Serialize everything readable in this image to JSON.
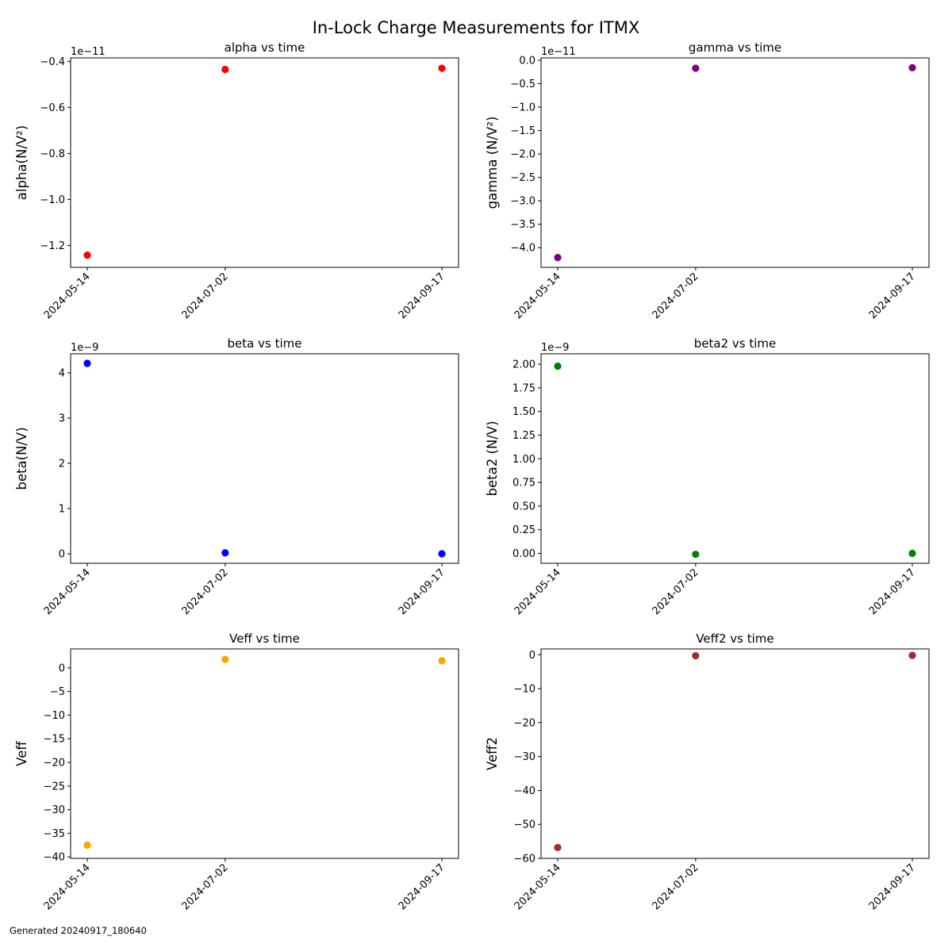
{
  "figure": {
    "suptitle": "In-Lock Charge Measurements for ITMX",
    "footer": "Generated 20240917_180640"
  },
  "chart_data": [
    {
      "type": "scatter",
      "title": "alpha vs time",
      "ylabel": "alpha(N/V²)",
      "offset_text": "1e−11",
      "x": [
        "2024-05-14",
        "2024-07-02",
        "2024-09-17"
      ],
      "y": [
        -12.42,
        -4.35,
        -4.3
      ],
      "y_scale_factor": 1e-11,
      "ylim": [
        -12.95,
        -3.85
      ],
      "yticks": [
        -12,
        -10,
        -8,
        -6,
        -4
      ],
      "ytick_labels": [
        "−1.2",
        "−1.0",
        "−0.8",
        "−0.6",
        "−0.4"
      ],
      "color": "#ff0000",
      "grid": false
    },
    {
      "type": "scatter",
      "title": "gamma vs time",
      "ylabel": "gamma (N/V²)",
      "offset_text": "1e−11",
      "x": [
        "2024-05-14",
        "2024-07-02",
        "2024-09-17"
      ],
      "y": [
        -4.21,
        -0.17,
        -0.16
      ],
      "y_scale_factor": 1e-11,
      "ylim": [
        -4.42,
        0.05
      ],
      "yticks": [
        0.0,
        -0.5,
        -1.0,
        -1.5,
        -2.0,
        -2.5,
        -3.0,
        -3.5,
        -4.0
      ],
      "ytick_labels": [
        "0.0",
        "−0.5",
        "−1.0",
        "−1.5",
        "−2.0",
        "−2.5",
        "−3.0",
        "−3.5",
        "−4.0"
      ],
      "color": "#800080",
      "grid": false
    },
    {
      "type": "scatter",
      "title": "beta vs time",
      "ylabel": "beta(N/V)",
      "offset_text": "1e−9",
      "x": [
        "2024-05-14",
        "2024-07-02",
        "2024-09-17"
      ],
      "y": [
        4.21,
        0.02,
        0.0
      ],
      "y_scale_factor": 1e-09,
      "ylim": [
        -0.21,
        4.42
      ],
      "yticks": [
        0,
        1,
        2,
        3,
        4
      ],
      "ytick_labels": [
        "0",
        "1",
        "2",
        "3",
        "4"
      ],
      "color": "#0000ff",
      "grid": false
    },
    {
      "type": "scatter",
      "title": "beta2 vs time",
      "ylabel": "beta2 (N/V)",
      "offset_text": "1e−9",
      "x": [
        "2024-05-14",
        "2024-07-02",
        "2024-09-17"
      ],
      "y": [
        1.98,
        -0.01,
        0.0
      ],
      "y_scale_factor": 1e-09,
      "ylim": [
        -0.105,
        2.11
      ],
      "yticks": [
        0.0,
        0.25,
        0.5,
        0.75,
        1.0,
        1.25,
        1.5,
        1.75,
        2.0
      ],
      "ytick_labels": [
        "0.00",
        "0.25",
        "0.50",
        "0.75",
        "1.00",
        "1.25",
        "1.50",
        "1.75",
        "2.00"
      ],
      "color": "#008000",
      "grid": false
    },
    {
      "type": "scatter",
      "title": "Veff vs time",
      "ylabel": "Veff",
      "offset_text": "",
      "x": [
        "2024-05-14",
        "2024-07-02",
        "2024-09-17"
      ],
      "y": [
        -37.5,
        1.8,
        1.5
      ],
      "y_scale_factor": 1,
      "ylim": [
        -40.3,
        4.0
      ],
      "yticks": [
        0,
        -5,
        -10,
        -15,
        -20,
        -25,
        -30,
        -35,
        -40
      ],
      "ytick_labels": [
        "0",
        "−5",
        "−10",
        "−15",
        "−20",
        "−25",
        "−30",
        "−35",
        "−40"
      ],
      "color": "#ffa500",
      "grid": false
    },
    {
      "type": "scatter",
      "title": "Veff2 vs time",
      "ylabel": "Veff2",
      "offset_text": "",
      "x": [
        "2024-05-14",
        "2024-07-02",
        "2024-09-17"
      ],
      "y": [
        -56.8,
        -0.3,
        -0.2
      ],
      "y_scale_factor": 1,
      "ylim": [
        -60.0,
        1.7
      ],
      "yticks": [
        0,
        -10,
        -20,
        -30,
        -40,
        -50,
        -60
      ],
      "ytick_labels": [
        "0",
        "−10",
        "−20",
        "−30",
        "−40",
        "−50",
        "−60"
      ],
      "color": "#a52a2a",
      "grid": false
    }
  ]
}
